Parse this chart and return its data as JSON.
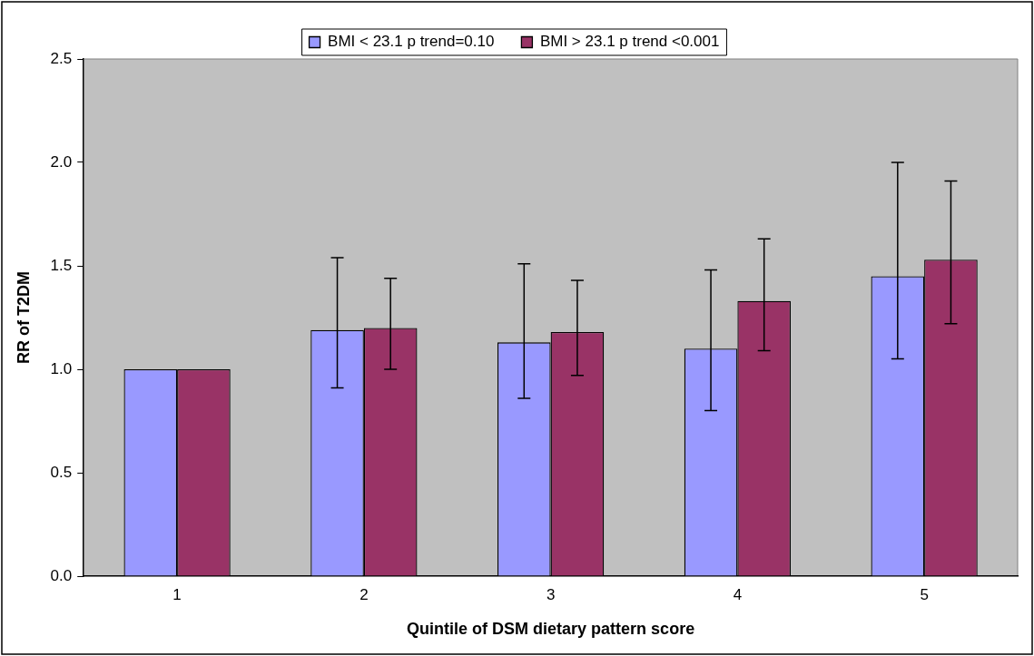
{
  "chart_data": {
    "type": "bar",
    "categories": [
      "1",
      "2",
      "3",
      "4",
      "5"
    ],
    "xlabel": "Quintile of DSM dietary pattern score",
    "ylabel": "RR of T2DM",
    "series": [
      {
        "name": "BMI < 23.1 p trend=0.10",
        "color": "#9999ff",
        "values": [
          1.0,
          1.19,
          1.13,
          1.1,
          1.45
        ],
        "errors": [
          null,
          [
            0.91,
            1.54
          ],
          [
            0.86,
            1.51
          ],
          [
            0.8,
            1.48
          ],
          [
            1.05,
            2.0
          ]
        ]
      },
      {
        "name": "BMI > 23.1 p trend <0.001",
        "color": "#993366",
        "values": [
          1.0,
          1.2,
          1.18,
          1.33,
          1.53
        ],
        "errors": [
          null,
          [
            1.0,
            1.44
          ],
          [
            0.97,
            1.43
          ],
          [
            1.09,
            1.63
          ],
          [
            1.22,
            1.91
          ]
        ]
      }
    ],
    "ylim": [
      0,
      2.5
    ],
    "yticks": [
      {
        "value": 0,
        "label": "0.0"
      },
      {
        "value": 0.5,
        "label": "0.5"
      },
      {
        "value": 1,
        "label": "1.0"
      },
      {
        "value": 1.5,
        "label": "1.5"
      },
      {
        "value": 2,
        "label": "2.0"
      },
      {
        "value": 2.5,
        "label": "2.5"
      }
    ],
    "grid": false,
    "legend": "top"
  }
}
